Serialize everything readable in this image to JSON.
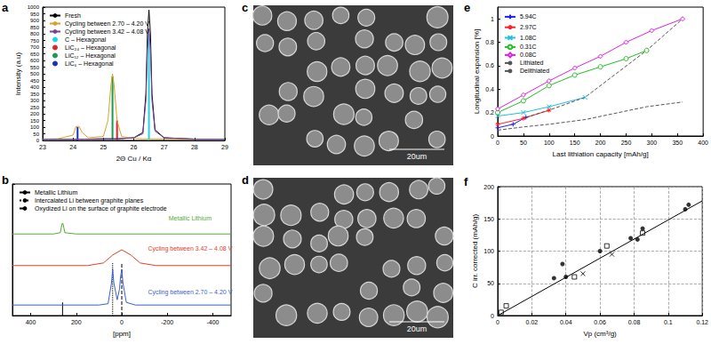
{
  "chart_data": [
    {
      "panel": "a",
      "type": "line",
      "x_label": "2Θ Cu / Kα",
      "y_label": "Intensity (a.u)",
      "xlim": [
        23,
        29
      ],
      "xticks": [
        23,
        24,
        25,
        26,
        27,
        28,
        29
      ],
      "ylim": [
        0,
        1000
      ],
      "yticks": [
        0,
        50,
        100,
        150,
        200,
        250,
        300,
        350,
        400,
        450,
        500,
        550,
        600,
        650,
        700,
        750,
        800,
        850,
        900,
        950,
        1000
      ],
      "grid": false,
      "legend": "upper left",
      "x": [
        23,
        23.5,
        24,
        24.1,
        24.2,
        24.3,
        24.5,
        25,
        25.15,
        25.25,
        25.3,
        25.35,
        25.45,
        25.6,
        26,
        26.3,
        26.4,
        26.45,
        26.5,
        26.55,
        26.6,
        26.7,
        27,
        28,
        29
      ],
      "series": [
        {
          "name": "Fresh",
          "color": "#000000",
          "line_style": "solid",
          "values": [
            10,
            10,
            10,
            10,
            10,
            10,
            10,
            12,
            12,
            12,
            12,
            12,
            12,
            14,
            20,
            60,
            350,
            800,
            980,
            800,
            350,
            80,
            20,
            10,
            10
          ]
        },
        {
          "name": "Cycling between 2.70 – 4.20 V",
          "color": "#d9a22b",
          "line_style": "solid",
          "values": [
            10,
            12,
            40,
            105,
            105,
            60,
            20,
            30,
            150,
            420,
            500,
            420,
            150,
            30,
            15,
            12,
            12,
            12,
            12,
            12,
            12,
            12,
            12,
            10,
            10
          ]
        },
        {
          "name": "Cycling between 3.42 – 4.08 V",
          "color": "#7e3f98",
          "line_style": "solid",
          "values": [
            10,
            10,
            10,
            10,
            10,
            10,
            10,
            12,
            12,
            12,
            12,
            12,
            12,
            14,
            20,
            50,
            300,
            680,
            840,
            680,
            300,
            70,
            20,
            10,
            10
          ]
        },
        {
          "name": "C – Hexagonal",
          "type": "bar",
          "color": "#1ad6e8",
          "x": [
            26.5
          ],
          "values": [
            800
          ]
        },
        {
          "name": "LiC₂₄ – Hexagonal",
          "type": "bar",
          "color": "#e8202a",
          "x": [
            25.45
          ],
          "values": [
            150
          ]
        },
        {
          "name": "LiC₁₂ – Hexagonal",
          "type": "bar",
          "color": "#1a9c4c",
          "x": [
            25.3
          ],
          "values": [
            480
          ]
        },
        {
          "name": "LiC₆ – Hexagonal",
          "type": "bar",
          "color": "#1a2fbf",
          "x": [
            24.15
          ],
          "values": [
            100
          ]
        }
      ]
    },
    {
      "panel": "b",
      "type": "line",
      "x_label": "[ppm]",
      "xlim": [
        480,
        -480
      ],
      "xticks": [
        400,
        200,
        0,
        -200,
        -400
      ],
      "ylim": [
        0,
        100
      ],
      "yticks": [
        0,
        100
      ],
      "tick_labels": "x",
      "grid": false,
      "legend": "upper left",
      "series": [
        {
          "name": "Metallic Lithium",
          "color": "#000000",
          "line_style": "solid",
          "x": [
            260,
            260
          ],
          "values": [
            0,
            10
          ]
        },
        {
          "name": "Intercalated Li between graphite planes",
          "color": "#000000",
          "line_style": "dotted",
          "x": [
            40,
            40
          ],
          "values": [
            0,
            40
          ]
        },
        {
          "name": "Oxydized Li on the surface of graphite electrode",
          "color": "#000000",
          "line_style": "dashed",
          "x": [
            0,
            0
          ],
          "values": [
            0,
            40
          ]
        },
        {
          "color": "#5aa83c",
          "line_style": "solid",
          "x": [
            480,
            300,
            270,
            262,
            258,
            250,
            200,
            0,
            -480
          ],
          "values": [
            62,
            62,
            63,
            70,
            70,
            63,
            62,
            62,
            62
          ]
        },
        {
          "color": "#e0402a",
          "line_style": "solid",
          "x": [
            480,
            150,
            80,
            40,
            0,
            -40,
            -80,
            -150,
            -480
          ],
          "values": [
            38,
            38,
            40,
            46,
            50,
            46,
            40,
            38,
            38
          ]
        },
        {
          "color": "#3a5fd0",
          "line_style": "solid",
          "x": [
            480,
            100,
            60,
            45,
            40,
            35,
            20,
            10,
            5,
            0,
            -5,
            -20,
            -60,
            -480
          ],
          "values": [
            8,
            8,
            9,
            25,
            35,
            25,
            12,
            20,
            30,
            35,
            25,
            10,
            8,
            8
          ]
        }
      ],
      "annotations": [
        {
          "text": "Metallic Lithium",
          "x": -300,
          "y": 74,
          "color": "#5aa83c"
        },
        {
          "text": "Cycling between 3.42 – 4.08 V",
          "x": -300,
          "y": 51,
          "color": "#e0402a"
        },
        {
          "text": "Cycling between 2.70 – 4.20 V",
          "x": -300,
          "y": 18,
          "color": "#3a5fd0"
        }
      ]
    },
    {
      "panel": "e",
      "type": "line",
      "x_label": "Last lithiation capacity [mAh/g]",
      "y_label": "Longitudinal expansion [%]",
      "xlim": [
        0,
        400
      ],
      "xticks": [
        0,
        50,
        100,
        150,
        200,
        250,
        300,
        350,
        400
      ],
      "ylim": [
        0,
        1.1
      ],
      "yticks": [
        0,
        0.2,
        0.4,
        0.6,
        0.8,
        1
      ],
      "grid": false,
      "legend": "upper left",
      "series": [
        {
          "name": "5.94C",
          "color": "#2020ff",
          "marker": "plus",
          "line_style": "solid",
          "x": [
            0,
            30,
            55
          ],
          "values": [
            0.07,
            0.1,
            0.16
          ]
        },
        {
          "name": "2.97C",
          "color": "#ff2020",
          "marker": "asterisk",
          "line_style": "solid",
          "x": [
            0,
            50,
            100
          ],
          "values": [
            0.1,
            0.15,
            0.22
          ]
        },
        {
          "name": "1.08C",
          "color": "#20c0e0",
          "marker": "x",
          "line_style": "solid",
          "x": [
            0,
            50,
            100,
            170
          ],
          "values": [
            0.17,
            0.2,
            0.25,
            0.33
          ]
        },
        {
          "name": "0.31C",
          "color": "#20c020",
          "marker": "open_circle",
          "line_style": "solid",
          "x": [
            0,
            50,
            100,
            150,
            200,
            250,
            290
          ],
          "values": [
            0.2,
            0.3,
            0.43,
            0.52,
            0.59,
            0.66,
            0.73
          ]
        },
        {
          "name": "0.08C",
          "color": "#e020e0",
          "marker": "open_diamond",
          "line_style": "solid",
          "x": [
            0,
            50,
            100,
            150,
            200,
            250,
            300,
            360
          ],
          "values": [
            0.23,
            0.35,
            0.47,
            0.58,
            0.68,
            0.8,
            0.9,
            1
          ]
        },
        {
          "name": "Lithiated",
          "color": "#555555",
          "line_style": "dashed",
          "x": [
            55,
            100,
            170,
            290,
            360
          ],
          "values": [
            0.16,
            0.22,
            0.33,
            0.73,
            1
          ]
        },
        {
          "name": "Delithiated",
          "color": "#555555",
          "line_style": "dashed",
          "x": [
            0,
            55,
            100,
            170,
            290,
            360
          ],
          "values": [
            0.05,
            0.08,
            0.1,
            0.14,
            0.25,
            0.29
          ]
        }
      ]
    },
    {
      "panel": "f",
      "type": "scatter",
      "x_label": "Vp (cm³/g)",
      "y_label": "C irr. corrected (mAh/g)",
      "xlim": [
        0,
        0.12
      ],
      "xticks": [
        0,
        0.02,
        0.04,
        0.06,
        0.08,
        0.1,
        0.12
      ],
      "ylim": [
        0,
        200
      ],
      "yticks": [
        0,
        50,
        100,
        150,
        200
      ],
      "grid": true,
      "series": [
        {
          "color": "#000000",
          "marker": "circle",
          "x": [
            0.033,
            0.038,
            0.04,
            0.06,
            0.078,
            0.082,
            0.085,
            0.11,
            0.112
          ],
          "values": [
            58,
            80,
            60,
            100,
            120,
            118,
            135,
            165,
            172
          ]
        },
        {
          "color": "#000000",
          "marker": "open_square",
          "x": [
            0.002,
            0.005,
            0.045,
            0.064,
            0.085
          ],
          "values": [
            5,
            15,
            60,
            108,
            128
          ]
        },
        {
          "color": "#000000",
          "marker": "x",
          "x": [
            0.05,
            0.067
          ],
          "values": [
            65,
            95
          ]
        },
        {
          "type": "line",
          "color": "#000000",
          "line_style": "solid",
          "x": [
            0,
            0.12
          ],
          "values": [
            0,
            178
          ]
        }
      ]
    }
  ],
  "images": [
    {
      "panel": "c",
      "scale_bar": "20um"
    },
    {
      "panel": "d",
      "scale_bar": "20um"
    }
  ]
}
